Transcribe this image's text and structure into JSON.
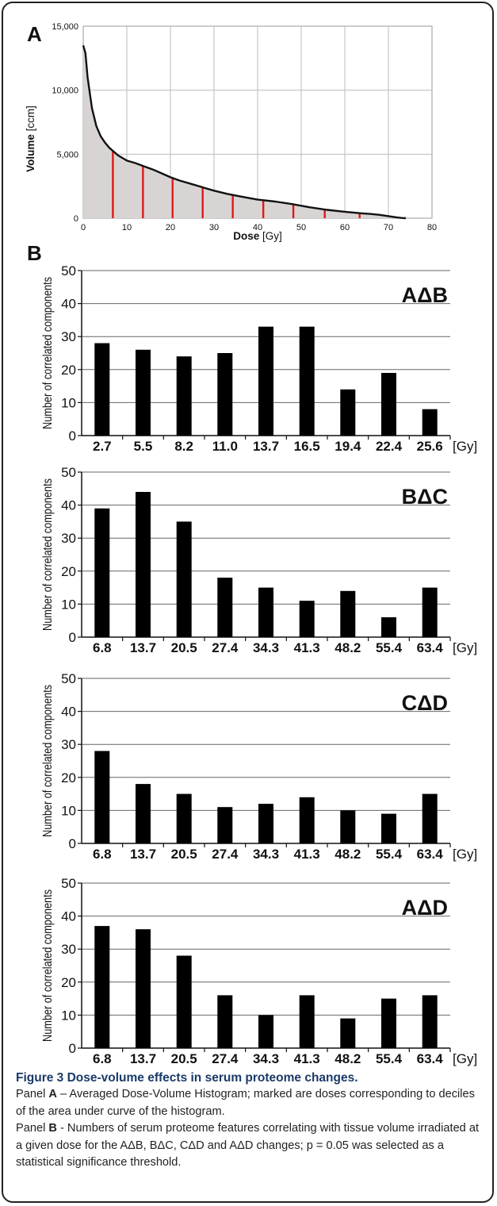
{
  "panel_a": {
    "letter": "A",
    "ylabel_bold": "Volume",
    "ylabel_unit": " [ccm]",
    "xlabel_bold": "Dose",
    "xlabel_unit": " [Gy]",
    "yticks": [
      "0",
      "5,000",
      "10,000",
      "15,000"
    ],
    "xticks": [
      "0",
      "10",
      "20",
      "30",
      "40",
      "50",
      "60",
      "70",
      "80"
    ]
  },
  "panel_b": {
    "letter": "B",
    "ylabel": "Number of correlated components",
    "unit": "[Gy]",
    "yticks": [
      "0",
      "10",
      "20",
      "30",
      "40",
      "50"
    ]
  },
  "caption": {
    "title": "Figure 3 Dose-volume effects in serum proteome changes.",
    "line_a_prefix": "Panel ",
    "line_a_letter": "A",
    "line_a_text": " – Averaged Dose-Volume Histogram; marked are doses corresponding to deciles of the area under curve of the histogram.",
    "line_b_prefix": "Panel ",
    "line_b_letter": "B",
    "line_b_text": " - Numbers of serum proteome features correlating with tissue volume irradiated at a given dose for the AΔB, BΔC, CΔD and AΔD changes; p = 0.05 was selected as a statistical significance threshold."
  },
  "chart_data": [
    {
      "type": "area",
      "xlabel": "Dose [Gy]",
      "ylabel": "Volume [ccm]",
      "xlim": [
        0,
        80
      ],
      "ylim": [
        0,
        15000
      ],
      "grid": true,
      "x": [
        0,
        0.5,
        1,
        2,
        3,
        4,
        5,
        6,
        7,
        8,
        10,
        12,
        14,
        16,
        18,
        20,
        22,
        25,
        28,
        30,
        33,
        36,
        40,
        44,
        48,
        52,
        56,
        60,
        64,
        66,
        68,
        70,
        72,
        73,
        74
      ],
      "y": [
        13500,
        12900,
        11000,
        8600,
        7200,
        6400,
        5900,
        5500,
        5200,
        4900,
        4500,
        4300,
        4050,
        3800,
        3500,
        3200,
        2950,
        2650,
        2350,
        2150,
        1900,
        1700,
        1450,
        1300,
        1100,
        850,
        650,
        500,
        380,
        330,
        260,
        160,
        60,
        20,
        0
      ],
      "markers": [
        {
          "dose": 6.8,
          "volume": 5250
        },
        {
          "dose": 13.7,
          "volume": 4080
        },
        {
          "dose": 20.5,
          "volume": 3150
        },
        {
          "dose": 27.4,
          "volume": 2400
        },
        {
          "dose": 34.3,
          "volume": 1800
        },
        {
          "dose": 41.3,
          "volume": 1400
        },
        {
          "dose": 48.2,
          "volume": 1080
        },
        {
          "dose": 55.4,
          "volume": 680
        },
        {
          "dose": 63.4,
          "volume": 420
        }
      ],
      "colors": {
        "fill": "#d8d4d4",
        "line": "#111111",
        "marker": "#e01818"
      }
    },
    {
      "type": "bar",
      "title": "AΔB",
      "categories": [
        "2.7",
        "5.5",
        "8.2",
        "11.0",
        "13.7",
        "16.5",
        "19.4",
        "22.4",
        "25.6"
      ],
      "values": [
        28,
        26,
        24,
        25,
        33,
        33,
        14,
        19,
        8
      ],
      "ylabel": "Number of correlated components",
      "xlabel": "[Gy]",
      "ylim": [
        0,
        50
      ],
      "grid": true
    },
    {
      "type": "bar",
      "title": "BΔC",
      "categories": [
        "6.8",
        "13.7",
        "20.5",
        "27.4",
        "34.3",
        "41.3",
        "48.2",
        "55.4",
        "63.4"
      ],
      "values": [
        39,
        44,
        35,
        18,
        15,
        11,
        14,
        6,
        15
      ],
      "ylabel": "Number of correlated components",
      "xlabel": "[Gy]",
      "ylim": [
        0,
        50
      ],
      "grid": true
    },
    {
      "type": "bar",
      "title": "CΔD",
      "categories": [
        "6.8",
        "13.7",
        "20.5",
        "27.4",
        "34.3",
        "41.3",
        "48.2",
        "55.4",
        "63.4"
      ],
      "values": [
        28,
        18,
        15,
        11,
        12,
        14,
        10,
        9,
        15
      ],
      "ylabel": "Number of correlated components",
      "xlabel": "[Gy]",
      "ylim": [
        0,
        50
      ],
      "grid": true
    },
    {
      "type": "bar",
      "title": "AΔD",
      "categories": [
        "6.8",
        "13.7",
        "20.5",
        "27.4",
        "34.3",
        "41.3",
        "48.2",
        "55.4",
        "63.4"
      ],
      "values": [
        37,
        36,
        28,
        16,
        10,
        16,
        9,
        15,
        16
      ],
      "ylabel": "Number of correlated components",
      "xlabel": "[Gy]",
      "ylim": [
        0,
        50
      ],
      "grid": true
    }
  ]
}
